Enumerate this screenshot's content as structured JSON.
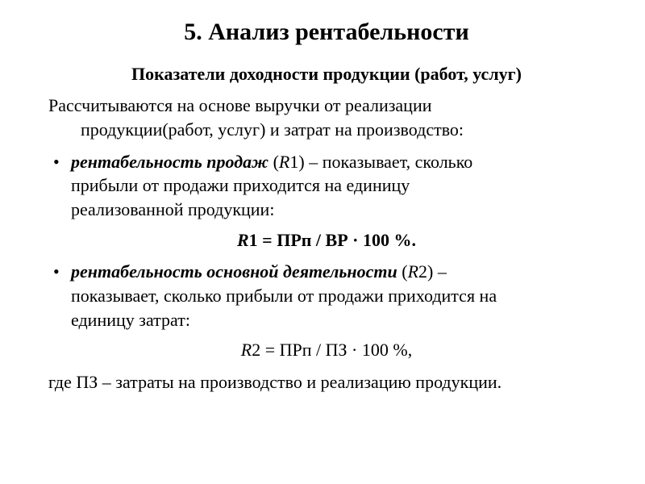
{
  "title": "5. Анализ рентабельности",
  "subtitle": "Показатели доходности продукции (работ, услуг)",
  "intro_line1": "Рассчитываются на основе выручки от реализации",
  "intro_line2": "продукции(работ, услуг) и затрат на производство:",
  "item1": {
    "term": "рентабельность продаж",
    "code": " (",
    "r": "R",
    "num": "1) – ",
    "desc1": "показывает, сколько",
    "desc2": "прибыли от продажи приходится на единицу",
    "desc3": "реализованной продукции:"
  },
  "formula1": {
    "r": "R",
    "rest": "1 = ПРп / ВР · 100 %."
  },
  "item2": {
    "term": "рентабельность основной деятельности",
    "code": " (",
    "r": "R",
    "num": "2) – ",
    "desc1": "",
    "desc2": "показывает, сколько прибыли от продажи приходится на",
    "desc3": "единицу затрат:"
  },
  "formula2": {
    "r": "R",
    "rest": "2 = ПРп / ПЗ · 100 %,"
  },
  "note": "где ПЗ – затраты на производство и реализацию продукции."
}
